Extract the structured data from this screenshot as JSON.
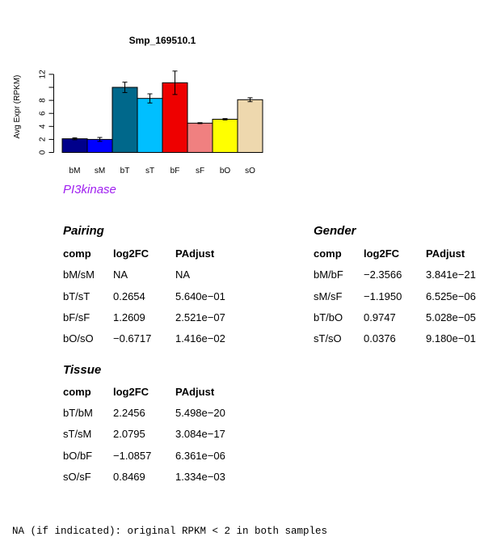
{
  "chart_data": {
    "type": "bar",
    "title": "Smp_169510.1",
    "ylabel": "Avg Expr (RPKM)",
    "xlabel": "",
    "categories": [
      "bM",
      "sM",
      "bT",
      "sT",
      "bF",
      "sF",
      "bO",
      "sO"
    ],
    "values": [
      2.1,
      2.0,
      10.0,
      8.3,
      10.7,
      4.5,
      5.1,
      8.1
    ],
    "errors": [
      0.15,
      0.3,
      0.8,
      0.7,
      1.8,
      0.07,
      0.1,
      0.3
    ],
    "colors": [
      "#00008b",
      "#0000ff",
      "#00688b",
      "#00bfff",
      "#ee0000",
      "#f08080",
      "#ffff00",
      "#eed8ae"
    ],
    "ylim": [
      0,
      13.6
    ],
    "yticks": [
      0,
      2,
      4,
      6,
      8,
      10,
      12
    ],
    "ytick_labels": [
      "0",
      "2",
      "4",
      "6",
      "8",
      "",
      "12"
    ]
  },
  "pathway": "PI3kinase",
  "tables": {
    "pairing": {
      "title": "Pairing",
      "headers": [
        "comp",
        "log2FC",
        "PAdjust"
      ],
      "rows": [
        [
          "bM/sM",
          "NA",
          "NA"
        ],
        [
          "bT/sT",
          "0.2654",
          "5.640e−01"
        ],
        [
          "bF/sF",
          "1.2609",
          "2.521e−07"
        ],
        [
          "bO/sO",
          "−0.6717",
          "1.416e−02"
        ]
      ]
    },
    "gender": {
      "title": "Gender",
      "headers": [
        "comp",
        "log2FC",
        "PAdjust"
      ],
      "rows": [
        [
          "bM/bF",
          "−2.3566",
          "3.841e−21"
        ],
        [
          "sM/sF",
          "−1.1950",
          "6.525e−06"
        ],
        [
          "bT/bO",
          "0.9747",
          "5.028e−05"
        ],
        [
          "sT/sO",
          "0.0376",
          "9.180e−01"
        ]
      ]
    },
    "tissue": {
      "title": "Tissue",
      "headers": [
        "comp",
        "log2FC",
        "PAdjust"
      ],
      "rows": [
        [
          "bT/bM",
          "2.2456",
          "5.498e−20"
        ],
        [
          "sT/sM",
          "2.0795",
          "3.084e−17"
        ],
        [
          "bO/bF",
          "−1.0857",
          "6.361e−06"
        ],
        [
          "sO/sF",
          "0.8469",
          "1.334e−03"
        ]
      ]
    }
  },
  "footnote": "NA (if indicated): original RPKM < 2 in both samples"
}
